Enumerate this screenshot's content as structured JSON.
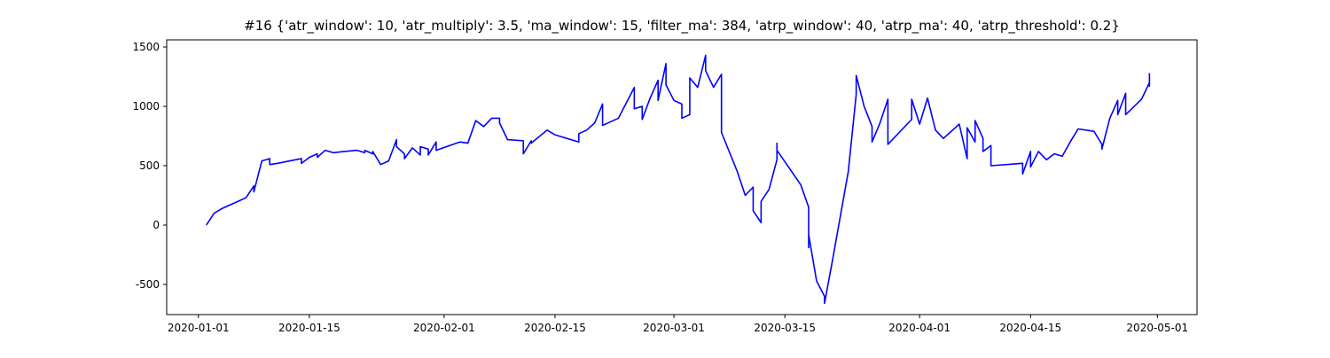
{
  "chart_data": {
    "type": "line",
    "title": "#16 {'atr_window': 10, 'atr_multiply': 3.5, 'ma_window': 15, 'filter_ma': 384, 'atrp_window': 40, 'atrp_ma': 40, 'atrp_threshold': 0.2}",
    "color": "#0000ff",
    "x": [
      "2020-01-02",
      "2020-01-03",
      "2020-01-04",
      "2020-01-07",
      "2020-01-08",
      "2020-01-08",
      "2020-01-09",
      "2020-01-10",
      "2020-01-10",
      "2020-01-11",
      "2020-01-14",
      "2020-01-14",
      "2020-01-15",
      "2020-01-16",
      "2020-01-16",
      "2020-01-17",
      "2020-01-18",
      "2020-01-21",
      "2020-01-22",
      "2020-01-22",
      "2020-01-23",
      "2020-01-23",
      "2020-01-24",
      "2020-01-25",
      "2020-01-26",
      "2020-01-26",
      "2020-01-27",
      "2020-01-27",
      "2020-01-28",
      "2020-01-29",
      "2020-01-29",
      "2020-01-30",
      "2020-01-30",
      "2020-01-31",
      "2020-01-31",
      "2020-02-03",
      "2020-02-04",
      "2020-02-05",
      "2020-02-06",
      "2020-02-07",
      "2020-02-08",
      "2020-02-08",
      "2020-02-09",
      "2020-02-11",
      "2020-02-11",
      "2020-02-12",
      "2020-02-12",
      "2020-02-14",
      "2020-02-15",
      "2020-02-18",
      "2020-02-18",
      "2020-02-19",
      "2020-02-20",
      "2020-02-21",
      "2020-02-21",
      "2020-02-22",
      "2020-02-23",
      "2020-02-25",
      "2020-02-25",
      "2020-02-26",
      "2020-02-26",
      "2020-02-27",
      "2020-02-28",
      "2020-02-28",
      "2020-02-29",
      "2020-02-29",
      "2020-03-01",
      "2020-03-02",
      "2020-03-02",
      "2020-03-03",
      "2020-03-03",
      "2020-03-04",
      "2020-03-05",
      "2020-03-05",
      "2020-03-06",
      "2020-03-07",
      "2020-03-07",
      "2020-03-09",
      "2020-03-10",
      "2020-03-11",
      "2020-03-11",
      "2020-03-12",
      "2020-03-12",
      "2020-03-13",
      "2020-03-14",
      "2020-03-14",
      "2020-03-14",
      "2020-03-17",
      "2020-03-18",
      "2020-03-18",
      "2020-03-18",
      "2020-03-19",
      "2020-03-20",
      "2020-03-20",
      "2020-03-21",
      "2020-03-23",
      "2020-03-24",
      "2020-03-24",
      "2020-03-25",
      "2020-03-26",
      "2020-03-26",
      "2020-03-27",
      "2020-03-28",
      "2020-03-28",
      "2020-03-31",
      "2020-03-31",
      "2020-04-01",
      "2020-04-02",
      "2020-04-03",
      "2020-04-04",
      "2020-04-06",
      "2020-04-07",
      "2020-04-07",
      "2020-04-08",
      "2020-04-08",
      "2020-04-09",
      "2020-04-09",
      "2020-04-10",
      "2020-04-10",
      "2020-04-14",
      "2020-04-14",
      "2020-04-15",
      "2020-04-15",
      "2020-04-16",
      "2020-04-17",
      "2020-04-18",
      "2020-04-19",
      "2020-04-20",
      "2020-04-21",
      "2020-04-23",
      "2020-04-24",
      "2020-04-24",
      "2020-04-25",
      "2020-04-26",
      "2020-04-26",
      "2020-04-27",
      "2020-04-27",
      "2020-04-29",
      "2020-04-30",
      "2020-04-30",
      "2020-04-30"
    ],
    "values": [
      0,
      100,
      140,
      230,
      330,
      280,
      540,
      560,
      510,
      520,
      560,
      520,
      570,
      600,
      570,
      630,
      610,
      630,
      610,
      630,
      600,
      620,
      510,
      540,
      720,
      660,
      600,
      560,
      650,
      590,
      660,
      640,
      590,
      700,
      630,
      700,
      690,
      880,
      830,
      900,
      900,
      860,
      720,
      710,
      600,
      710,
      690,
      800,
      760,
      700,
      770,
      800,
      860,
      1020,
      840,
      870,
      900,
      1160,
      980,
      1000,
      890,
      1070,
      1220,
      1050,
      1360,
      1180,
      1050,
      1020,
      900,
      930,
      1240,
      1160,
      1430,
      1300,
      1160,
      1270,
      780,
      450,
      250,
      320,
      120,
      20,
      200,
      300,
      550,
      690,
      630,
      340,
      150,
      -190,
      -80,
      -470,
      -600,
      -660,
      -300,
      450,
      1100,
      1260,
      1000,
      830,
      700,
      860,
      1060,
      680,
      890,
      1060,
      850,
      1070,
      800,
      730,
      850,
      560,
      820,
      700,
      880,
      730,
      620,
      670,
      500,
      520,
      430,
      620,
      490,
      620,
      550,
      600,
      580,
      700,
      810,
      790,
      680,
      640,
      900,
      1050,
      930,
      1110,
      930,
      1060,
      1200,
      1170,
      1280
    ],
    "xlim": [
      "2019-12-28",
      "2020-05-06"
    ],
    "xticks": [
      "2020-01-01",
      "2020-01-15",
      "2020-02-01",
      "2020-02-15",
      "2020-03-01",
      "2020-03-15",
      "2020-04-01",
      "2020-04-15",
      "2020-05-01"
    ],
    "ylim": [
      -754,
      1560
    ],
    "yticks": [
      -500,
      0,
      500,
      1000,
      1500
    ],
    "grid": false
  }
}
